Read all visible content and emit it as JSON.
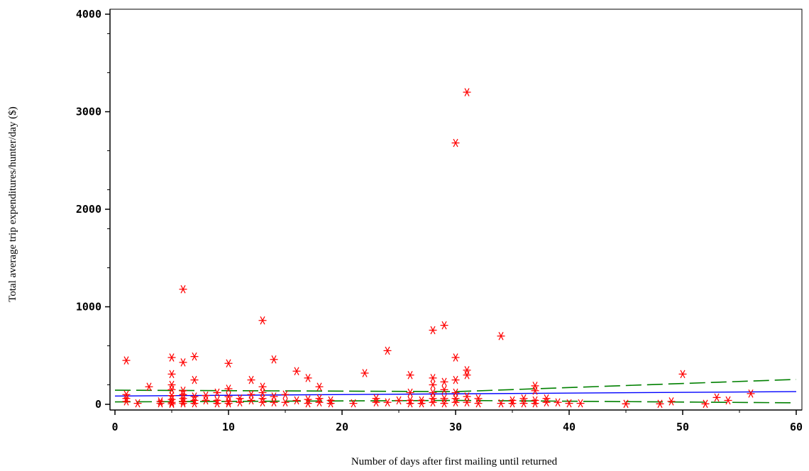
{
  "chart_data": {
    "type": "scatter",
    "title": "",
    "xlabel": "Number of days after first mailing until returned",
    "ylabel": "Total average trip expenditures/hunter/day ($)",
    "xlim": [
      0,
      60
    ],
    "ylim": [
      0,
      4000
    ],
    "x_ticks": [
      "0",
      "10",
      "20",
      "30",
      "40",
      "50",
      "60"
    ],
    "y_ticks": [
      "0",
      "1000",
      "2000",
      "3000",
      "4000"
    ],
    "grid": false,
    "legend": "none",
    "colors": {
      "points": "#ff0000",
      "fit": "#0000ff",
      "bounds": "#008000"
    },
    "series": [
      {
        "type": "scatter",
        "marker": "asterisk",
        "points": [
          [
            1,
            450
          ],
          [
            1,
            100
          ],
          [
            1,
            60
          ],
          [
            1,
            30
          ],
          [
            2,
            10
          ],
          [
            3,
            180
          ],
          [
            4,
            10
          ],
          [
            4,
            30
          ],
          [
            5,
            480
          ],
          [
            5,
            310
          ],
          [
            5,
            200
          ],
          [
            5,
            150
          ],
          [
            5,
            90
          ],
          [
            5,
            50
          ],
          [
            5,
            20
          ],
          [
            5,
            5
          ],
          [
            6,
            1180
          ],
          [
            6,
            430
          ],
          [
            6,
            140
          ],
          [
            6,
            100
          ],
          [
            6,
            60
          ],
          [
            6,
            30
          ],
          [
            6,
            10
          ],
          [
            7,
            490
          ],
          [
            7,
            250
          ],
          [
            7,
            80
          ],
          [
            7,
            40
          ],
          [
            7,
            10
          ],
          [
            8,
            90
          ],
          [
            8,
            40
          ],
          [
            9,
            120
          ],
          [
            9,
            40
          ],
          [
            9,
            10
          ],
          [
            10,
            420
          ],
          [
            10,
            160
          ],
          [
            10,
            80
          ],
          [
            10,
            30
          ],
          [
            10,
            10
          ],
          [
            11,
            60
          ],
          [
            11,
            20
          ],
          [
            12,
            250
          ],
          [
            12,
            100
          ],
          [
            12,
            40
          ],
          [
            13,
            860
          ],
          [
            13,
            180
          ],
          [
            13,
            120
          ],
          [
            13,
            60
          ],
          [
            13,
            20
          ],
          [
            14,
            460
          ],
          [
            14,
            80
          ],
          [
            14,
            20
          ],
          [
            15,
            100
          ],
          [
            15,
            20
          ],
          [
            16,
            340
          ],
          [
            16,
            40
          ],
          [
            17,
            270
          ],
          [
            17,
            50
          ],
          [
            17,
            10
          ],
          [
            18,
            180
          ],
          [
            18,
            60
          ],
          [
            18,
            20
          ],
          [
            19,
            40
          ],
          [
            19,
            10
          ],
          [
            21,
            10
          ],
          [
            22,
            320
          ],
          [
            23,
            60
          ],
          [
            23,
            20
          ],
          [
            24,
            550
          ],
          [
            24,
            20
          ],
          [
            25,
            40
          ],
          [
            26,
            300
          ],
          [
            26,
            120
          ],
          [
            26,
            40
          ],
          [
            26,
            10
          ],
          [
            27,
            40
          ],
          [
            27,
            10
          ],
          [
            28,
            760
          ],
          [
            28,
            270
          ],
          [
            28,
            200
          ],
          [
            28,
            120
          ],
          [
            28,
            60
          ],
          [
            28,
            20
          ],
          [
            29,
            810
          ],
          [
            29,
            230
          ],
          [
            29,
            150
          ],
          [
            29,
            60
          ],
          [
            29,
            10
          ],
          [
            30,
            2680
          ],
          [
            30,
            480
          ],
          [
            30,
            250
          ],
          [
            30,
            120
          ],
          [
            30,
            60
          ],
          [
            30,
            20
          ],
          [
            31,
            3200
          ],
          [
            31,
            350
          ],
          [
            31,
            300
          ],
          [
            31,
            80
          ],
          [
            31,
            20
          ],
          [
            32,
            60
          ],
          [
            32,
            10
          ],
          [
            34,
            700
          ],
          [
            34,
            10
          ],
          [
            35,
            40
          ],
          [
            35,
            10
          ],
          [
            36,
            60
          ],
          [
            36,
            10
          ],
          [
            37,
            190
          ],
          [
            37,
            140
          ],
          [
            37,
            40
          ],
          [
            37,
            10
          ],
          [
            38,
            60
          ],
          [
            38,
            20
          ],
          [
            39,
            20
          ],
          [
            40,
            10
          ],
          [
            41,
            10
          ],
          [
            45,
            5
          ],
          [
            48,
            5
          ],
          [
            49,
            30
          ],
          [
            50,
            310
          ],
          [
            52,
            5
          ],
          [
            53,
            70
          ],
          [
            54,
            40
          ],
          [
            56,
            110
          ]
        ]
      },
      {
        "type": "line",
        "style": "solid",
        "points": [
          [
            0,
            85
          ],
          [
            60,
            130
          ]
        ]
      },
      {
        "type": "line",
        "style": "dashed",
        "points": [
          [
            0,
            145
          ],
          [
            30,
            130
          ],
          [
            60,
            255
          ]
        ]
      },
      {
        "type": "line",
        "style": "dashed",
        "points": [
          [
            0,
            25
          ],
          [
            30,
            40
          ],
          [
            60,
            15
          ]
        ]
      }
    ]
  }
}
